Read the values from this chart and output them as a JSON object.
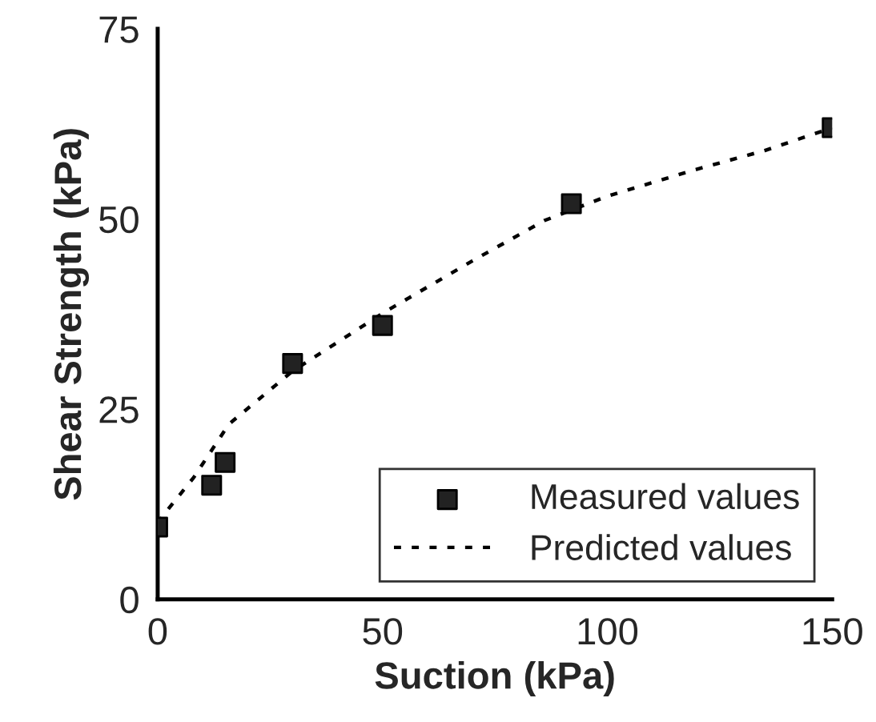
{
  "chart_data": {
    "type": "scatter",
    "xlabel": "Suction (kPa)",
    "ylabel": "Shear Strength (kPa)",
    "xlim": [
      0,
      150
    ],
    "ylim": [
      0,
      75
    ],
    "xticks": [
      0,
      50,
      100,
      150
    ],
    "yticks": [
      0,
      25,
      50,
      75
    ],
    "grid": false,
    "legend": "bottom right",
    "series": [
      {
        "name": "Measured values",
        "marker": "square",
        "color": "#222222",
        "x": [
          0,
          12,
          15,
          30,
          50,
          92,
          150
        ],
        "values": [
          9.5,
          15,
          18,
          31,
          36,
          52,
          62
        ]
      },
      {
        "name": "Predicted values",
        "type": "line",
        "marker": "none",
        "line_style": "dotted",
        "color": "#000000",
        "x": [
          0,
          2.4,
          8,
          15.8,
          30,
          50,
          70,
          86,
          100,
          119,
          135,
          150
        ],
        "values": [
          10,
          11.9,
          16,
          23,
          30,
          37.6,
          44.5,
          49.8,
          53,
          56.4,
          59,
          62
        ]
      }
    ]
  }
}
